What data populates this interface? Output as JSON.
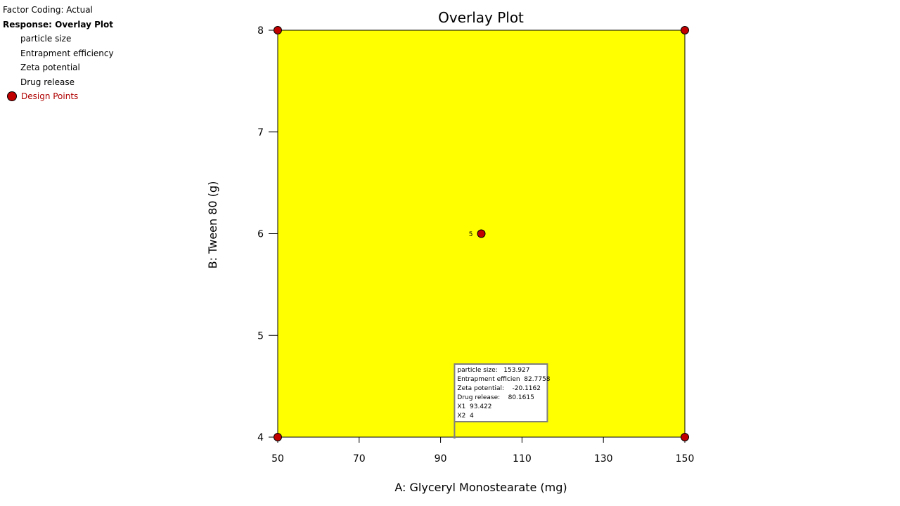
{
  "legend": {
    "factor_coding": "Factor Coding: Actual",
    "response": "Response: Overlay Plot",
    "items": [
      "particle size",
      "Entrapment efficiency",
      "Zeta potential",
      "Drug release"
    ],
    "design_points": "Design Points"
  },
  "chart_data": {
    "type": "scatter",
    "title": "Overlay Plot",
    "xlabel": "A: Glyceryl Monostearate (mg)",
    "ylabel": "B: Tween 80 (g)",
    "xlim": [
      50,
      150
    ],
    "ylim": [
      4,
      8
    ],
    "xticks": [
      50,
      70,
      90,
      110,
      130,
      150
    ],
    "yticks": [
      4,
      5,
      6,
      7,
      8
    ],
    "region_color": "#ffff00",
    "point_color": "#c00000",
    "points": [
      {
        "x": 50,
        "y": 8,
        "label": ""
      },
      {
        "x": 150,
        "y": 8,
        "label": ""
      },
      {
        "x": 100,
        "y": 6,
        "label": "5"
      },
      {
        "x": 50,
        "y": 4,
        "label": ""
      },
      {
        "x": 150,
        "y": 4,
        "label": ""
      }
    ],
    "flag": {
      "x": 93.422,
      "y": 4,
      "lines": [
        "particle size:   153.927",
        "Entrapment efficien  82.7758",
        "Zeta potential:    -20.1162",
        "Drug release:    80.1615",
        "X1  93.422",
        "X2  4"
      ]
    }
  }
}
